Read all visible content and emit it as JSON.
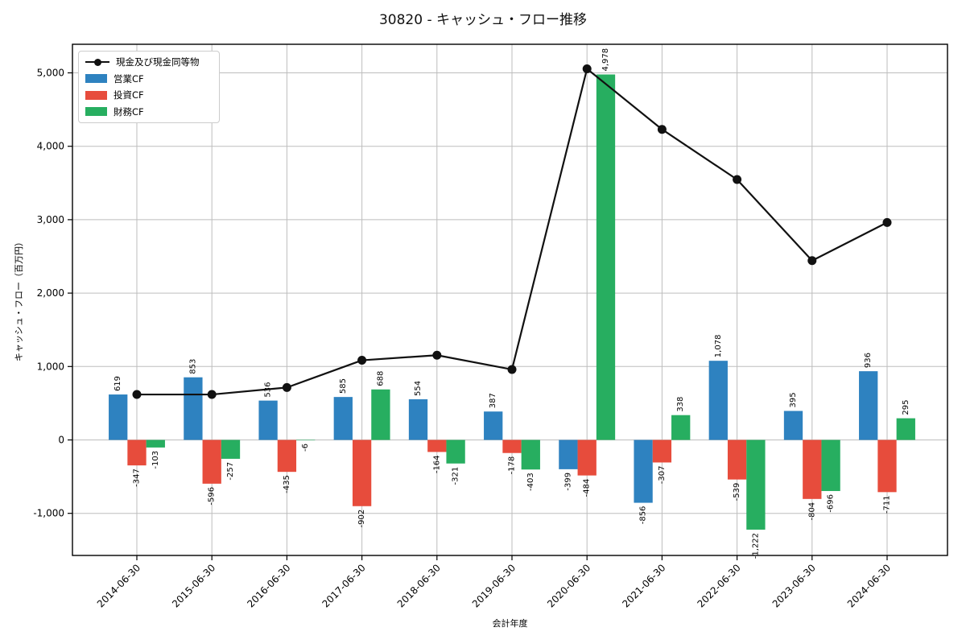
{
  "chart_data": {
    "type": "grouped_bar_with_line",
    "title": "30820 - キャッシュ・フロー推移",
    "xlabel": "会計年度",
    "ylabel": "キャッシュ・フロー（百万円）",
    "categories": [
      "2014-06-30",
      "2015-06-30",
      "2016-06-30",
      "2017-06-30",
      "2018-06-30",
      "2019-06-30",
      "2020-06-30",
      "2021-06-30",
      "2022-06-30",
      "2023-06-30",
      "2024-06-30"
    ],
    "bar_series": [
      {
        "name": "営業CF",
        "color": "#2e82c0",
        "values": [
          619,
          853,
          536,
          585,
          554,
          387,
          -399,
          -856,
          1078,
          395,
          936
        ]
      },
      {
        "name": "投資CF",
        "color": "#e74c3c",
        "values": [
          -347,
          -596,
          -435,
          -902,
          -164,
          -178,
          -484,
          -307,
          -539,
          -804,
          -711
        ]
      },
      {
        "name": "財務CF",
        "color": "#27ae60",
        "values": [
          -103,
          -257,
          -6,
          688,
          -321,
          -403,
          4978,
          338,
          -1222,
          -696,
          295
        ]
      }
    ],
    "line_series": {
      "name": "現金及び現金同等物",
      "color": "#111111",
      "values": [
        619,
        619,
        714,
        1085,
        1154,
        960,
        5055,
        4230,
        3547,
        2442,
        2962
      ],
      "note": "values estimated from plot; line not labeled"
    },
    "yticks": [
      -1000,
      0,
      1000,
      2000,
      3000,
      4000,
      5000
    ],
    "ytick_labels": [
      "-1,000",
      "0",
      "1,000",
      "2,000",
      "3,000",
      "4,000",
      "5,000"
    ],
    "ylim": [
      -1536,
      5380
    ],
    "grid": true,
    "legend_position": "upper-left",
    "bar_value_labels_rotation": 90,
    "colors": {
      "grid": "#bdbdbd",
      "spine": "#000000",
      "text": "#000000",
      "background": "#ffffff"
    }
  }
}
